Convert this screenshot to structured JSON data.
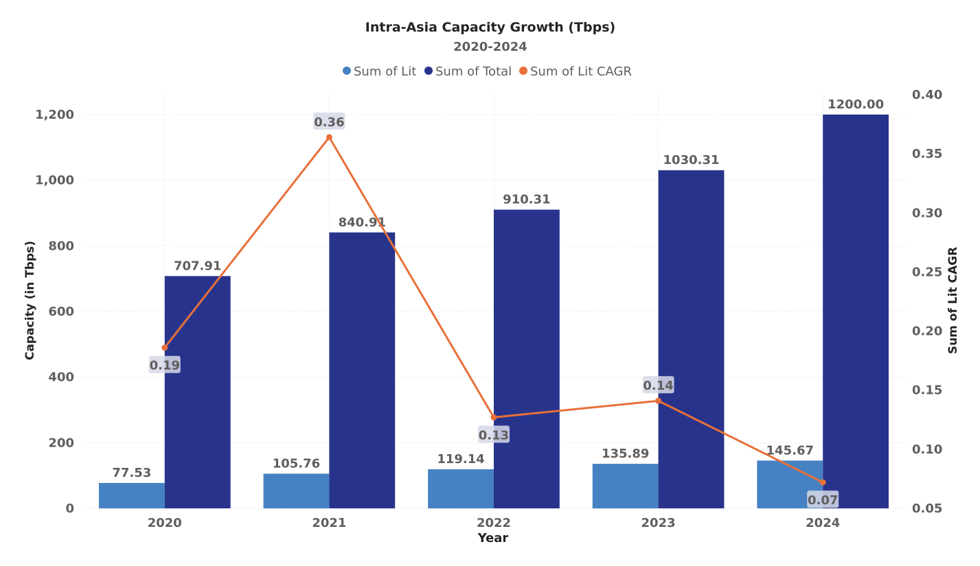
{
  "chart_data": {
    "type": "bar",
    "title": "Intra-Asia Capacity Growth (Tbps)",
    "subtitle": "2020-2024",
    "xlabel": "Year",
    "ylabel": "Capacity (in Tbps)",
    "y2label": "Sum of Lit CAGR",
    "categories": [
      "2020",
      "2021",
      "2022",
      "2023",
      "2024"
    ],
    "ylim": [
      0,
      1200
    ],
    "yticks": [
      0,
      200,
      400,
      600,
      800,
      1000,
      1200
    ],
    "ytick_labels": [
      "0",
      "200",
      "400",
      "600",
      "800",
      "1,000",
      "1,200"
    ],
    "y2lim": [
      0.05,
      0.4
    ],
    "y2ticks": [
      0.05,
      0.1,
      0.15,
      0.2,
      0.25,
      0.3,
      0.35,
      0.4
    ],
    "y2tick_labels": [
      "0.05",
      "0.10",
      "0.15",
      "0.20",
      "0.25",
      "0.30",
      "0.35",
      "0.40"
    ],
    "legend_position": "top-center",
    "grid": true,
    "series": [
      {
        "name": "Sum of Lit",
        "kind": "bar",
        "axis": "left",
        "color": "#4682c3",
        "values": [
          77.53,
          105.76,
          119.14,
          135.89,
          145.67
        ],
        "labels": [
          "77.53",
          "105.76",
          "119.14",
          "135.89",
          "145.67"
        ]
      },
      {
        "name": "Sum of Total",
        "kind": "bar",
        "axis": "left",
        "color": "#28348c",
        "values": [
          707.91,
          840.91,
          910.31,
          1030.31,
          1200.0
        ],
        "labels": [
          "707.91",
          "840.91",
          "910.31",
          "1030.31",
          "1200.00"
        ]
      },
      {
        "name": "Sum of Lit CAGR",
        "kind": "line",
        "axis": "right",
        "color": "#e8703a",
        "values": [
          0.186,
          0.364,
          0.127,
          0.141,
          0.072
        ],
        "labels": [
          "0.19",
          "0.36",
          "0.13",
          "0.14",
          "0.07"
        ]
      }
    ]
  }
}
